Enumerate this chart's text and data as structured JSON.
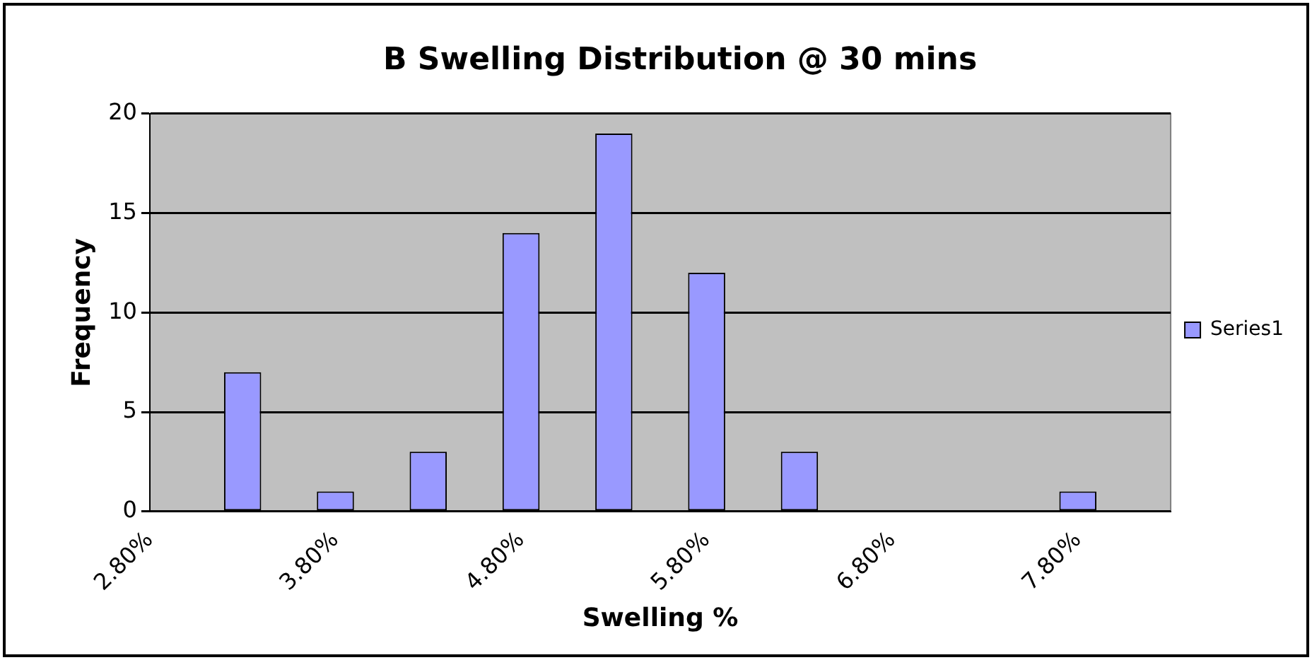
{
  "chart_data": {
    "type": "bar",
    "title": "B Swelling Distribution @ 30 mins",
    "xlabel": "Swelling %",
    "ylabel": "Frequency",
    "categories": [
      "2.80%",
      null,
      "3.80%",
      null,
      "4.80%",
      null,
      "5.80%",
      null,
      "6.80%",
      null,
      "7.80%",
      null
    ],
    "series": [
      {
        "name": "Series1",
        "color": "#9999ff",
        "values": [
          0,
          7,
          1,
          3,
          14,
          19,
          12,
          3,
          0,
          0,
          1,
          0
        ]
      }
    ],
    "ylim": [
      0,
      20
    ],
    "yticks": [
      0,
      5,
      10,
      15,
      20
    ],
    "grid": "y",
    "legend": "right"
  }
}
